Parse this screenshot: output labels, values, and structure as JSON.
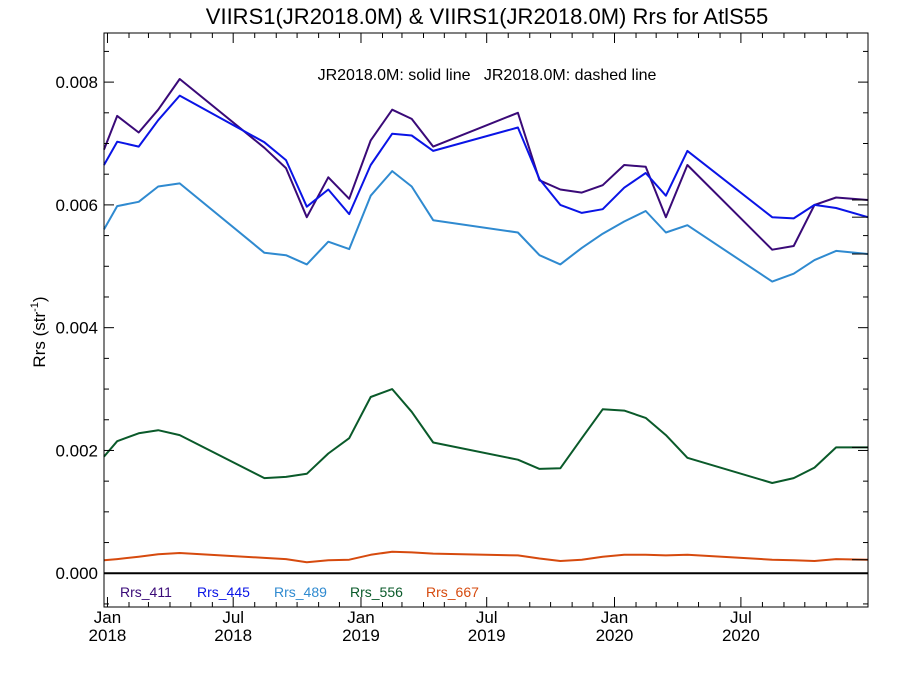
{
  "chart_data": {
    "type": "line",
    "title": "VIIRS1(JR2018.0M) & VIIRS1(JR2018.0M)  Rrs for AtlS55",
    "annotation": "JR2018.0M: solid line   JR2018.0M: dashed line",
    "ylabel": "Rrs (str",
    "ylabel_sup": "-1",
    "ylabel_close": ")",
    "xlabel": "",
    "xlim": [
      "2017-12-27",
      "2020-12-31"
    ],
    "ylim": [
      -0.00055,
      0.0088
    ],
    "grid": false,
    "legend_placement": "bottom-left inside plot",
    "y_ticks": [
      {
        "value": 0.0,
        "label": "0.000"
      },
      {
        "value": 0.002,
        "label": "0.002"
      },
      {
        "value": 0.004,
        "label": "0.004"
      },
      {
        "value": 0.006,
        "label": "0.006"
      },
      {
        "value": 0.008,
        "label": "0.008"
      }
    ],
    "x_ticks": [
      {
        "date": "2018-01-01",
        "month": "Jan",
        "year": "2018"
      },
      {
        "date": "2018-07-01",
        "month": "Jul",
        "year": "2018"
      },
      {
        "date": "2019-01-01",
        "month": "Jan",
        "year": "2019"
      },
      {
        "date": "2019-07-01",
        "month": "Jul",
        "year": "2019"
      },
      {
        "date": "2020-01-01",
        "month": "Jan",
        "year": "2020"
      },
      {
        "date": "2020-07-01",
        "month": "Jul",
        "year": "2020"
      }
    ],
    "zero_line": 0.0,
    "series": [
      {
        "name": "Rrs_411",
        "color": "#3a0a78",
        "x": [
          "2017-12-27",
          "2018-01-15",
          "2018-02-15",
          "2018-03-15",
          "2018-04-15",
          "2018-08-15",
          "2018-09-15",
          "2018-10-15",
          "2018-11-15",
          "2018-12-15",
          "2019-01-15",
          "2019-02-15",
          "2019-03-15",
          "2019-04-15",
          "2019-08-15",
          "2019-09-15",
          "2019-10-15",
          "2019-11-15",
          "2019-12-15",
          "2020-01-15",
          "2020-02-15",
          "2020-03-15",
          "2020-04-15",
          "2020-08-15",
          "2020-09-15",
          "2020-10-15",
          "2020-11-15",
          "2020-12-31"
        ],
        "y": [
          0.0069,
          0.00745,
          0.00718,
          0.00755,
          0.00805,
          0.00693,
          0.0066,
          0.0058,
          0.00645,
          0.0061,
          0.00705,
          0.00755,
          0.0074,
          0.00695,
          0.0075,
          0.0064,
          0.00625,
          0.0062,
          0.00632,
          0.00665,
          0.00662,
          0.0058,
          0.00665,
          0.00527,
          0.00533,
          0.006,
          0.00612,
          0.00608
        ]
      },
      {
        "name": "Rrs_445",
        "color": "#0a14e6",
        "x": [
          "2017-12-27",
          "2018-01-15",
          "2018-02-15",
          "2018-03-15",
          "2018-04-15",
          "2018-08-15",
          "2018-09-15",
          "2018-10-15",
          "2018-11-15",
          "2018-12-15",
          "2019-01-15",
          "2019-02-15",
          "2019-03-15",
          "2019-04-15",
          "2019-08-15",
          "2019-09-15",
          "2019-10-15",
          "2019-11-15",
          "2019-12-15",
          "2020-01-15",
          "2020-02-15",
          "2020-03-15",
          "2020-04-15",
          "2020-08-15",
          "2020-09-15",
          "2020-10-15",
          "2020-11-15",
          "2020-12-31"
        ],
        "y": [
          0.00665,
          0.00703,
          0.00695,
          0.00738,
          0.00778,
          0.00702,
          0.00673,
          0.00597,
          0.00625,
          0.00585,
          0.00665,
          0.00716,
          0.00713,
          0.00688,
          0.00726,
          0.00642,
          0.006,
          0.00587,
          0.00593,
          0.00628,
          0.00652,
          0.00615,
          0.00688,
          0.0058,
          0.00578,
          0.006,
          0.00595,
          0.0058
        ]
      },
      {
        "name": "Rrs_489",
        "color": "#2f8ad0",
        "x": [
          "2017-12-27",
          "2018-01-15",
          "2018-02-15",
          "2018-03-15",
          "2018-04-15",
          "2018-08-15",
          "2018-09-15",
          "2018-10-15",
          "2018-11-15",
          "2018-12-15",
          "2019-01-15",
          "2019-02-15",
          "2019-03-15",
          "2019-04-15",
          "2019-08-15",
          "2019-09-15",
          "2019-10-15",
          "2019-11-15",
          "2019-12-15",
          "2020-01-15",
          "2020-02-15",
          "2020-03-15",
          "2020-04-15",
          "2020-08-15",
          "2020-09-15",
          "2020-10-15",
          "2020-11-15",
          "2020-12-31"
        ],
        "y": [
          0.0056,
          0.00598,
          0.00605,
          0.0063,
          0.00635,
          0.00522,
          0.00518,
          0.00503,
          0.0054,
          0.00528,
          0.00615,
          0.00655,
          0.0063,
          0.00575,
          0.00555,
          0.00518,
          0.00503,
          0.0053,
          0.00553,
          0.00573,
          0.0059,
          0.00555,
          0.00567,
          0.00475,
          0.00488,
          0.0051,
          0.00525,
          0.0052
        ]
      },
      {
        "name": "Rrs_556",
        "color": "#0a5a2a",
        "x": [
          "2017-12-27",
          "2018-01-15",
          "2018-02-15",
          "2018-03-15",
          "2018-04-15",
          "2018-08-15",
          "2018-09-15",
          "2018-10-15",
          "2018-11-15",
          "2018-12-15",
          "2019-01-15",
          "2019-02-15",
          "2019-03-15",
          "2019-04-15",
          "2019-08-15",
          "2019-09-15",
          "2019-10-15",
          "2019-11-15",
          "2019-12-15",
          "2020-01-15",
          "2020-02-15",
          "2020-03-15",
          "2020-04-15",
          "2020-08-15",
          "2020-09-15",
          "2020-10-15",
          "2020-11-15",
          "2020-12-31"
        ],
        "y": [
          0.0019,
          0.00215,
          0.00228,
          0.00233,
          0.00225,
          0.00155,
          0.00157,
          0.00162,
          0.00195,
          0.0022,
          0.00287,
          0.003,
          0.00263,
          0.00213,
          0.00185,
          0.0017,
          0.00171,
          0.0022,
          0.00267,
          0.00265,
          0.00253,
          0.00225,
          0.00188,
          0.00147,
          0.00155,
          0.00172,
          0.00205,
          0.00205
        ]
      },
      {
        "name": "Rrs_667",
        "color": "#d64a0e",
        "x": [
          "2017-12-27",
          "2018-01-15",
          "2018-02-15",
          "2018-03-15",
          "2018-04-15",
          "2018-08-15",
          "2018-09-15",
          "2018-10-15",
          "2018-11-15",
          "2018-12-15",
          "2019-01-15",
          "2019-02-15",
          "2019-03-15",
          "2019-04-15",
          "2019-08-15",
          "2019-09-15",
          "2019-10-15",
          "2019-11-15",
          "2019-12-15",
          "2020-01-15",
          "2020-02-15",
          "2020-03-15",
          "2020-04-15",
          "2020-08-15",
          "2020-09-15",
          "2020-10-15",
          "2020-11-15",
          "2020-12-31"
        ],
        "y": [
          0.00021,
          0.00023,
          0.00027,
          0.00031,
          0.00033,
          0.00025,
          0.00023,
          0.00018,
          0.00021,
          0.00022,
          0.0003,
          0.00035,
          0.00034,
          0.00032,
          0.00029,
          0.00024,
          0.0002,
          0.00022,
          0.00027,
          0.0003,
          0.0003,
          0.00029,
          0.0003,
          0.00022,
          0.00021,
          0.0002,
          0.00023,
          0.00022
        ]
      }
    ]
  }
}
